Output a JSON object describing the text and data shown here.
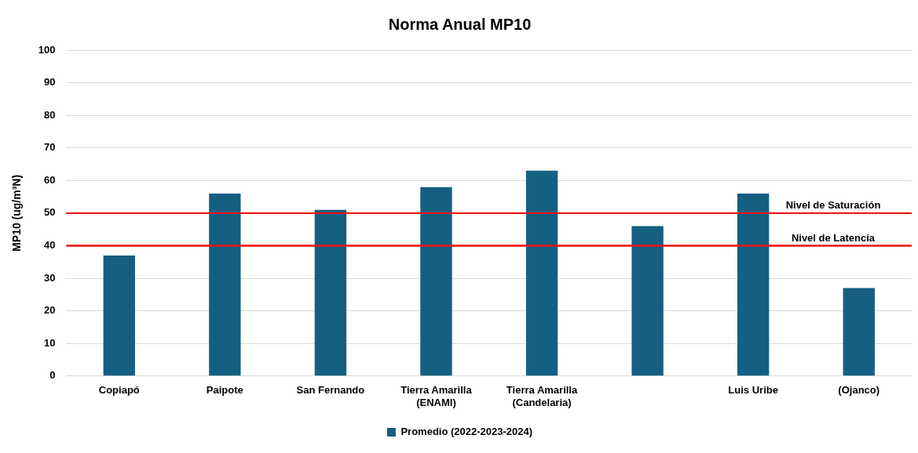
{
  "chart_data": {
    "type": "bar",
    "title": "Norma Anual MP10",
    "ylabel": "MP10 (ug/m³N)",
    "categories": [
      "Copiapó",
      "Paipote",
      "San Fernando",
      [
        "Tierra Amarilla",
        "(ENAMI)"
      ],
      [
        "Tierra Amarilla",
        "(Candelaria)"
      ],
      null,
      "Luis Uribe",
      "(Ojanco)"
    ],
    "series": [
      {
        "name": "Promedio (2022-2023-2024)",
        "color": "#155f82",
        "values": [
          37,
          56,
          51,
          58,
          63,
          46,
          56,
          27
        ]
      }
    ],
    "ylim": [
      0,
      100
    ],
    "yticks": [
      0,
      10,
      20,
      30,
      40,
      50,
      60,
      70,
      80,
      90,
      100
    ],
    "grid": "y",
    "legend": "bottom",
    "ref_lines": [
      {
        "axis": "y",
        "value": 50,
        "label": "Nivel de Saturación",
        "color": "#ee1111"
      },
      {
        "axis": "y",
        "value": 40,
        "label": "Nivel de Latencia",
        "color": "#ee1111"
      }
    ]
  }
}
